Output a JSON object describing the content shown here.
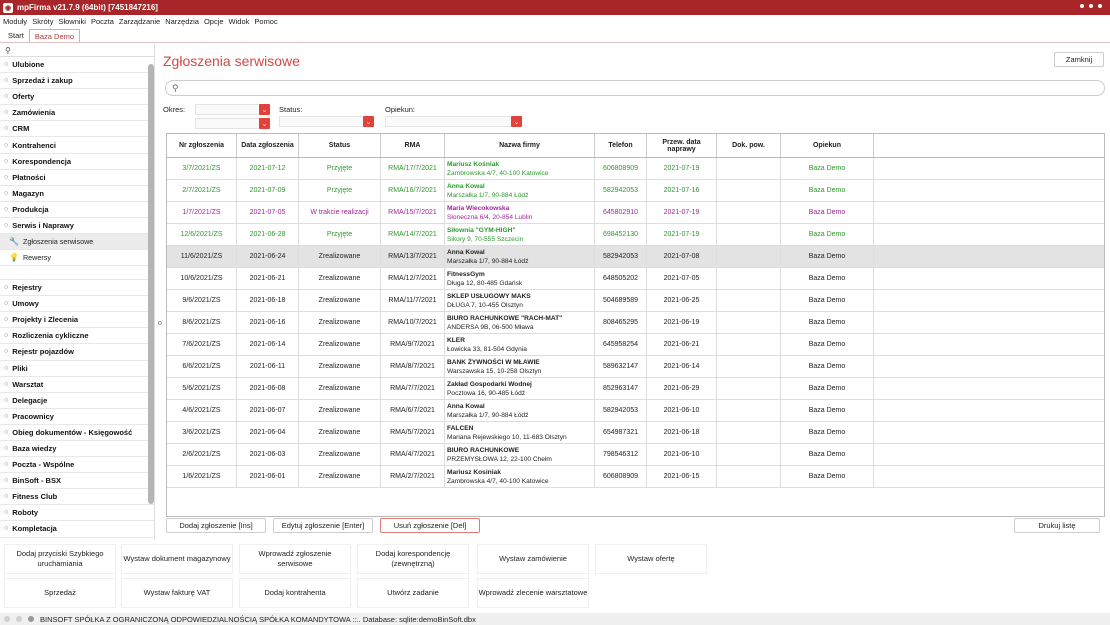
{
  "window": {
    "title": "mpFirma v21.7.9 (64bit) [7451847216]"
  },
  "menu": [
    "Moduły",
    "Skróty",
    "Słowniki",
    "Poczta",
    "Zarządzanie",
    "Narzędzia",
    "Opcje",
    "Widok",
    "Pomoc"
  ],
  "tabs": [
    "Start",
    "Baza Demo"
  ],
  "sidebar": {
    "items_top": [
      "Ulubione",
      "Sprzedaż i zakup",
      "Oferty",
      "Zamówienia",
      "CRM",
      "Kontrahenci",
      "Korespondencja",
      "Płatności",
      "Magazyn",
      "Produkcja",
      "Serwis i Naprawy"
    ],
    "subitems": [
      "Zgłoszenia serwisowe",
      "Rewersy"
    ],
    "items_bottom": [
      "Rejestry",
      "Umowy",
      "Projekty i Zlecenia",
      "Rozliczenia cykliczne",
      "Rejestr pojazdów",
      "Pliki",
      "Warsztat",
      "Delegacje",
      "Pracownicy",
      "Obieg dokumentów - Księgowość",
      "Baza wiedzy",
      "Poczta - Wspólne",
      "BinSoft - BSX",
      "Fitness Club",
      "Roboty",
      "Kompletacja"
    ]
  },
  "page": {
    "title": "Zgłoszenia serwisowe",
    "close_label": "Zamknij"
  },
  "filters": {
    "okres_label": "Okres:",
    "status_label": "Status:",
    "opiekun_label": "Opiekun:"
  },
  "table": {
    "headers": [
      "Nr zgłoszenia",
      "Data zgłoszenia",
      "Status",
      "RMA",
      "Nazwa firmy",
      "Telefon",
      "Przew. data naprawy",
      "Dok. pow.",
      "Opiekun"
    ],
    "rows": [
      {
        "nr": "3/7/2021/ZS",
        "data": "2021-07-12",
        "status": "Przyjęte",
        "rma": "RMA/17/7/2021",
        "firma": "Mariusz Kośniak",
        "adres": "Zambrowska 4/7, 40-100 Katowice",
        "tel": "606808909",
        "przew": "2021-07-19",
        "dok": "",
        "opiekun": "Baza Demo",
        "color": "#2e9a2e"
      },
      {
        "nr": "2/7/2021/ZS",
        "data": "2021-07-09",
        "status": "Przyjęte",
        "rma": "RMA/16/7/2021",
        "firma": "Anna Kowal",
        "adres": "Marszałka 1/7, 90-884 Łódź",
        "tel": "582942053",
        "przew": "2021-07-16",
        "dok": "",
        "opiekun": "Baza Demo",
        "color": "#2e9a2e"
      },
      {
        "nr": "1/7/2021/ZS",
        "data": "2021-07-05",
        "status": "W trakcie realizacji",
        "rma": "RMA/15/7/2021",
        "firma": "Maria Wiecokowska",
        "adres": "Słoneczna 6/4, 20-854 Lublin",
        "tel": "645802910",
        "przew": "2021-07-19",
        "dok": "",
        "opiekun": "Baza Demo",
        "color": "#a0279b"
      },
      {
        "nr": "12/6/2021/ZS",
        "data": "2021-06-28",
        "status": "Przyjęte",
        "rma": "RMA/14/7/2021",
        "firma": "Siłownia \"GYM-HIGH\"",
        "adres": "Sikory 9, 70-555 Szczecin",
        "tel": "698452130",
        "przew": "2021-07-19",
        "dok": "",
        "opiekun": "Baza Demo",
        "color": "#2e9a2e"
      },
      {
        "nr": "11/6/2021/ZS",
        "data": "2021-06-24",
        "status": "Zrealizowane",
        "rma": "RMA/13/7/2021",
        "firma": "Anna Kowal",
        "adres": "Marszałka 1/7, 90-884 Łódź",
        "tel": "582942053",
        "przew": "2021-07-08",
        "dok": "",
        "opiekun": "Baza Demo",
        "color": "#222"
      },
      {
        "nr": "10/6/2021/ZS",
        "data": "2021-06-21",
        "status": "Zrealizowane",
        "rma": "RMA/12/7/2021",
        "firma": "FitnessGym",
        "adres": "Długa 12, 80-485 Gdańsk",
        "tel": "648505202",
        "przew": "2021-07-05",
        "dok": "",
        "opiekun": "Baza Demo",
        "color": "#222"
      },
      {
        "nr": "9/6/2021/ZS",
        "data": "2021-06-18",
        "status": "Zrealizowane",
        "rma": "RMA/11/7/2021",
        "firma": "SKLEP USŁUGOWY MAKS",
        "adres": "DŁUGA 7, 10-455 Olsztyn",
        "tel": "504689589",
        "przew": "2021-06-25",
        "dok": "",
        "opiekun": "Baza Demo",
        "color": "#222"
      },
      {
        "nr": "8/6/2021/ZS",
        "data": "2021-06-16",
        "status": "Zrealizowane",
        "rma": "RMA/10/7/2021",
        "firma": "BIURO RACHUNKOWE \"RACH-MAT\"",
        "adres": "ANDERSA 9B, 06-500 Mława",
        "tel": "808465295",
        "przew": "2021-06-19",
        "dok": "",
        "opiekun": "Baza Demo",
        "color": "#222"
      },
      {
        "nr": "7/6/2021/ZS",
        "data": "2021-06-14",
        "status": "Zrealizowane",
        "rma": "RMA/9/7/2021",
        "firma": "KLER",
        "adres": "Łowicka 33, 81-504 Gdynia",
        "tel": "645958254",
        "przew": "2021-06-21",
        "dok": "",
        "opiekun": "Baza Demo",
        "color": "#222"
      },
      {
        "nr": "6/6/2021/ZS",
        "data": "2021-06-11",
        "status": "Zrealizowane",
        "rma": "RMA/8/7/2021",
        "firma": "BANK ŻYWNOŚCI W MŁAWIE",
        "adres": "Warszawska 15, 10-258 Olsztyn",
        "tel": "589632147",
        "przew": "2021-06-14",
        "dok": "",
        "opiekun": "Baza Demo",
        "color": "#222"
      },
      {
        "nr": "5/6/2021/ZS",
        "data": "2021-06-08",
        "status": "Zrealizowane",
        "rma": "RMA/7/7/2021",
        "firma": "Zakład Gospodarki Wodnej",
        "adres": "Pocztowa 16, 90-485 Łódź",
        "tel": "852963147",
        "przew": "2021-06-29",
        "dok": "",
        "opiekun": "Baza Demo",
        "color": "#222"
      },
      {
        "nr": "4/6/2021/ZS",
        "data": "2021-06-07",
        "status": "Zrealizowane",
        "rma": "RMA/6/7/2021",
        "firma": "Anna Kowal",
        "adres": "Marszałka 1/7, 90-884 Łódź",
        "tel": "582942053",
        "przew": "2021-06-10",
        "dok": "",
        "opiekun": "Baza Demo",
        "color": "#222"
      },
      {
        "nr": "3/6/2021/ZS",
        "data": "2021-06-04",
        "status": "Zrealizowane",
        "rma": "RMA/5/7/2021",
        "firma": "FALCEN",
        "adres": "Mariana Rejewskiego 10, 11-683 Olsztyn",
        "tel": "654987321",
        "przew": "2021-06-18",
        "dok": "",
        "opiekun": "Baza Demo",
        "color": "#222"
      },
      {
        "nr": "2/6/2021/ZS",
        "data": "2021-06-03",
        "status": "Zrealizowane",
        "rma": "RMA/4/7/2021",
        "firma": "BIURO RACHUNKOWE",
        "adres": "PRZEMYSŁOWA 12, 22-100 Chełm",
        "tel": "798546312",
        "przew": "2021-06-10",
        "dok": "",
        "opiekun": "Baza Demo",
        "color": "#222"
      },
      {
        "nr": "1/6/2021/ZS",
        "data": "2021-06-01",
        "status": "Zrealizowane",
        "rma": "RMA/2/7/2021",
        "firma": "Mariusz Kosiniak",
        "adres": "Zambrowska 4/7, 40-100 Katowice",
        "tel": "606808909",
        "przew": "2021-06-15",
        "dok": "",
        "opiekun": "Baza Demo",
        "color": "#222"
      }
    ]
  },
  "actions": {
    "add": "Dodaj zgłoszenie [Ins]",
    "edit": "Edytuj zgłoszenie [Enter]",
    "delete": "Usuń zgłoszenie [Del]",
    "print": "Drukuj listę"
  },
  "quick": [
    "Dodaj przyciski Szybkiego uruchamiania",
    "Wystaw dokument magazynowy",
    "Wprowadź zgłoszenie serwisowe",
    "Dodaj korespondencję (zewnętrzną)",
    "Wystaw zamówienie",
    "Wystaw ofertę",
    "Sprzedaż",
    "Wystaw fakturę VAT",
    "Dodaj kontrahenta",
    "Utwórz zadanie",
    "Wprowadź zlecenie warsztatowe"
  ],
  "status": {
    "text": "BINSOFT SPÓŁKA Z OGRANICZONĄ ODPOWIEDZIALNOŚCIĄ SPÓŁKA KOMANDYTOWA ::.. Database: sqlite:demoBinSoft.dbx"
  },
  "colors": {
    "accent": "#e3423c",
    "title_bar": "#a8262a",
    "accepted": "#2e9a2e",
    "in_progress": "#a0279b"
  },
  "icons": {
    "search": "search-icon",
    "dropdown": "chevron-down-icon",
    "service": "wrench-icon",
    "bulb": "bulb-icon"
  }
}
